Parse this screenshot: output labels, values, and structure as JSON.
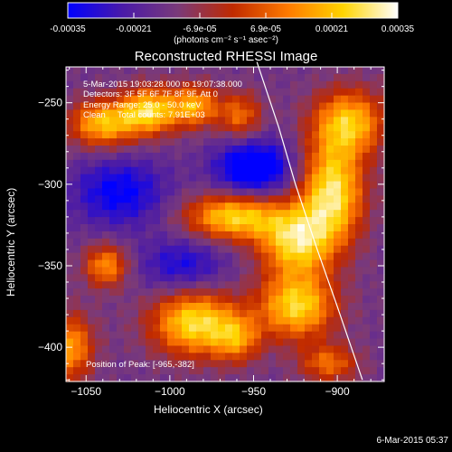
{
  "colorbar": {
    "tick_labels": [
      "-0.00035",
      "-0.00021",
      "-6.9e-05",
      "6.9e-05",
      "0.00021",
      "0.00035"
    ],
    "unit_label": "(photons cm⁻² s⁻¹ asec⁻²)"
  },
  "chart_data": {
    "type": "heatmap",
    "title": "Reconstructed RHESSI Image",
    "xlabel": "Heliocentric X (arcsec)",
    "ylabel": "Heliocentric Y (arcsec)",
    "xlim": [
      -1062,
      -872
    ],
    "ylim": [
      -421,
      -228
    ],
    "x_ticks": [
      -1050,
      -1000,
      -950,
      -900
    ],
    "y_ticks": [
      -250,
      -300,
      -350,
      -400
    ],
    "x_tick_labels": [
      "−1050",
      "−1000",
      "−950",
      "−900"
    ],
    "y_tick_labels": [
      "−250",
      "−300",
      "−350",
      "−400"
    ],
    "clim": [
      -0.00035,
      0.00035
    ],
    "colormap": [
      "#0000ff",
      "#4a1aa8",
      "#7a3a7a",
      "#c02a00",
      "#ff7a00",
      "#ffd400",
      "#ffffff"
    ],
    "annotations": {
      "time_range": "5-Mar-2015 19:03:28.000 to 19:07:38.000",
      "detectors": "Detectors: 3F 5F 6F 7F 8F 9F, Att 0",
      "energy_range": "Energy Range: 25.0 - 50.0 keV",
      "method": "Clean     Total counts: 7.91E+03",
      "peak_position": "Position of Peak: [-965,-382]"
    },
    "limb_curve": [
      [
        -948,
        -225
      ],
      [
        -935,
        -265
      ],
      [
        -925,
        -300
      ],
      [
        -912,
        -340
      ],
      [
        -900,
        -375
      ],
      [
        -885,
        -420
      ]
    ],
    "sources": [
      {
        "x": -1040,
        "y": -263,
        "sx": 14,
        "sy": 10,
        "amp": 0.9
      },
      {
        "x": -1012,
        "y": -255,
        "sx": 12,
        "sy": 10,
        "amp": 1.0
      },
      {
        "x": -985,
        "y": -252,
        "sx": 10,
        "sy": 9,
        "amp": 0.8
      },
      {
        "x": -958,
        "y": -258,
        "sx": 9,
        "sy": 10,
        "amp": 0.6
      },
      {
        "x": -893,
        "y": -262,
        "sx": 15,
        "sy": 14,
        "amp": 0.9
      },
      {
        "x": -903,
        "y": -305,
        "sx": 13,
        "sy": 22,
        "amp": 1.1
      },
      {
        "x": -962,
        "y": -320,
        "sx": 20,
        "sy": 10,
        "amp": 1.0
      },
      {
        "x": -925,
        "y": -335,
        "sx": 15,
        "sy": 15,
        "amp": 1.0
      },
      {
        "x": -1038,
        "y": -350,
        "sx": 9,
        "sy": 9,
        "amp": 0.75
      },
      {
        "x": -924,
        "y": -375,
        "sx": 16,
        "sy": 14,
        "amp": 1.0
      },
      {
        "x": -985,
        "y": -385,
        "sx": 18,
        "sy": 14,
        "amp": 1.05
      },
      {
        "x": -960,
        "y": -395,
        "sx": 10,
        "sy": 10,
        "amp": 0.6
      },
      {
        "x": -1060,
        "y": -400,
        "sx": 10,
        "sy": 14,
        "amp": 0.8
      },
      {
        "x": -905,
        "y": -410,
        "sx": 12,
        "sy": 8,
        "amp": 0.6
      },
      {
        "x": -950,
        "y": -290,
        "sx": 16,
        "sy": 12,
        "amp": -0.8
      },
      {
        "x": -1030,
        "y": -305,
        "sx": 20,
        "sy": 15,
        "amp": -0.55
      },
      {
        "x": -992,
        "y": -350,
        "sx": 18,
        "sy": 12,
        "amp": -0.45
      }
    ]
  },
  "footer": {
    "timestamp": "6-Mar-2015 05:37"
  }
}
